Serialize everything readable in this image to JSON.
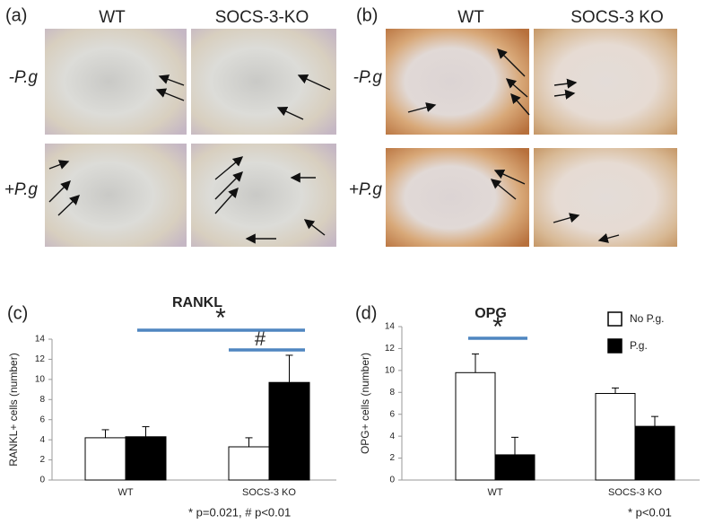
{
  "panels": [
    {
      "label": "(a)",
      "columns": [
        "WT",
        "SOCS-3-KO"
      ],
      "rows": [
        "-P.g",
        "+P.g"
      ]
    },
    {
      "label": "(b)",
      "columns": [
        "WT",
        "SOCS-3 KO"
      ],
      "rows": [
        "-P.g",
        "+P.g"
      ]
    }
  ],
  "chart_data": [
    {
      "type": "bar",
      "panel_label": "(c)",
      "title": "RANKL",
      "y_label": "RANKL+ cells (number)",
      "categories": [
        "WT",
        "SOCS-3 KO"
      ],
      "series": [
        {
          "color": "#ffffff",
          "values": [
            4.2,
            3.3
          ],
          "errors": [
            0.8,
            0.9
          ]
        },
        {
          "color": "#000000",
          "values": [
            4.3,
            9.7
          ],
          "errors": [
            1.0,
            2.7
          ]
        }
      ],
      "ylim": [
        0,
        14
      ],
      "yticks": [
        0,
        2,
        4,
        6,
        8,
        10,
        12,
        14
      ],
      "annotations": [
        "*",
        "#"
      ],
      "note": "* p=0.021, # p<0.01"
    },
    {
      "type": "bar",
      "panel_label": "(d)",
      "title": "OPG",
      "y_label": "OPG+ cells (number)",
      "categories": [
        "WT",
        "SOCS-3 KO"
      ],
      "series": [
        {
          "name": "No P.g.",
          "color": "#ffffff",
          "values": [
            9.8,
            7.9
          ],
          "errors": [
            1.7,
            0.5
          ]
        },
        {
          "name": "P.g.",
          "color": "#000000",
          "values": [
            2.3,
            4.9
          ],
          "errors": [
            1.6,
            0.9
          ]
        }
      ],
      "ylim": [
        0,
        14
      ],
      "yticks": [
        0,
        2,
        4,
        6,
        8,
        10,
        12,
        14
      ],
      "annotations": [
        "*"
      ],
      "note": "* p<0.01"
    }
  ]
}
